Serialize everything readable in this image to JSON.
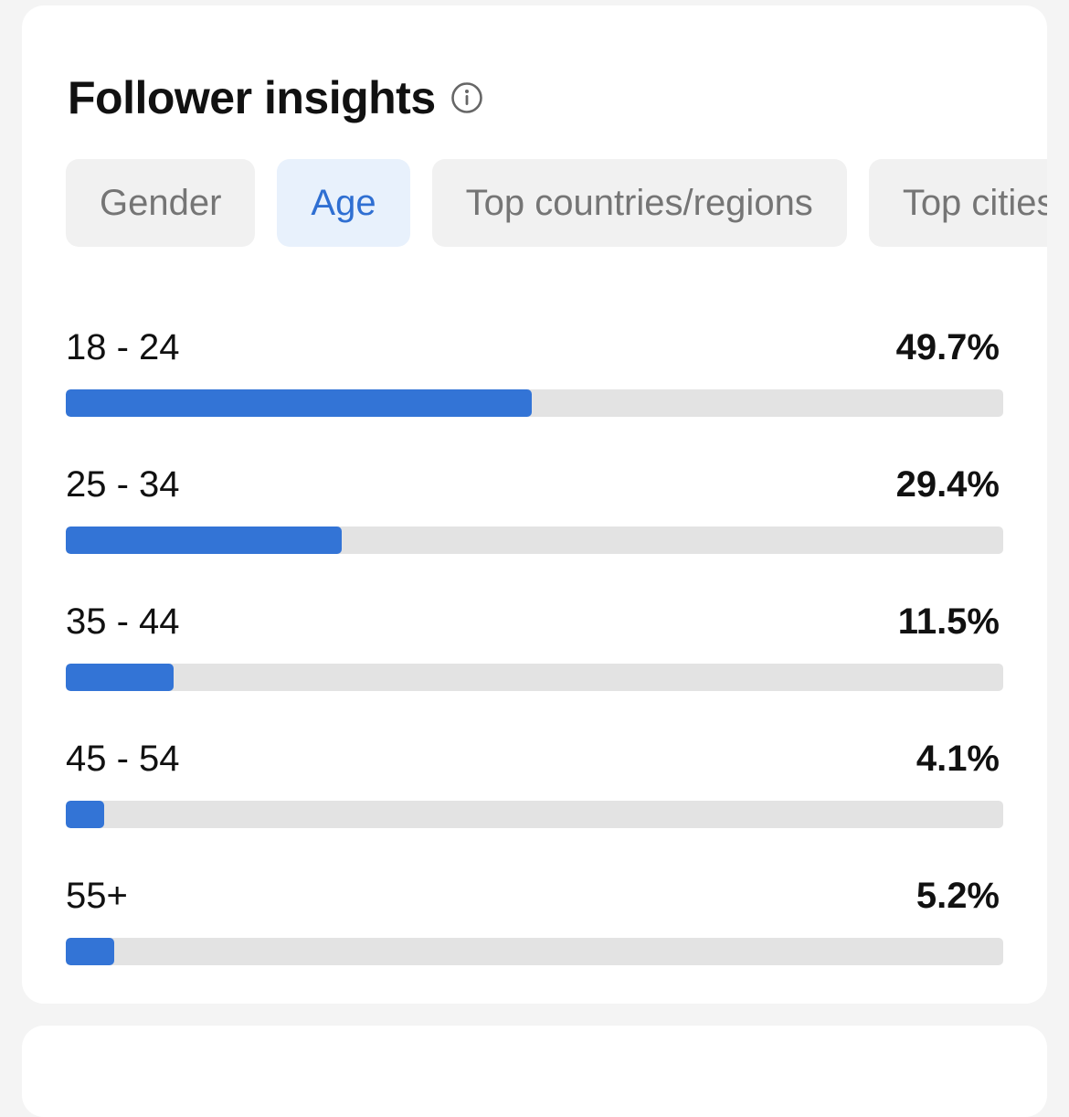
{
  "header": {
    "title": "Follower insights",
    "info_icon": "info-circle-icon"
  },
  "tabs": [
    {
      "label": "Gender",
      "active": false
    },
    {
      "label": "Age",
      "active": true
    },
    {
      "label": "Top countries/regions",
      "active": false
    },
    {
      "label": "Top cities",
      "active": false
    }
  ],
  "age_distribution": [
    {
      "label": "18 - 24",
      "value_text": "49.7%",
      "fill_fraction": 0.497
    },
    {
      "label": "25 - 34",
      "value_text": "29.4%",
      "fill_fraction": 0.294
    },
    {
      "label": "35 - 44",
      "value_text": "11.5%",
      "fill_fraction": 0.115
    },
    {
      "label": "45 - 54",
      "value_text": "4.1%",
      "fill_fraction": 0.041
    },
    {
      "label": "55+",
      "value_text": "5.2%",
      "fill_fraction": 0.052
    }
  ],
  "colors": {
    "accent": "#3374d6",
    "active_tab_bg": "#e8f1fc",
    "active_tab_text": "#2f6fd2",
    "track": "#e3e3e3",
    "page_bg": "#f4f4f4"
  }
}
